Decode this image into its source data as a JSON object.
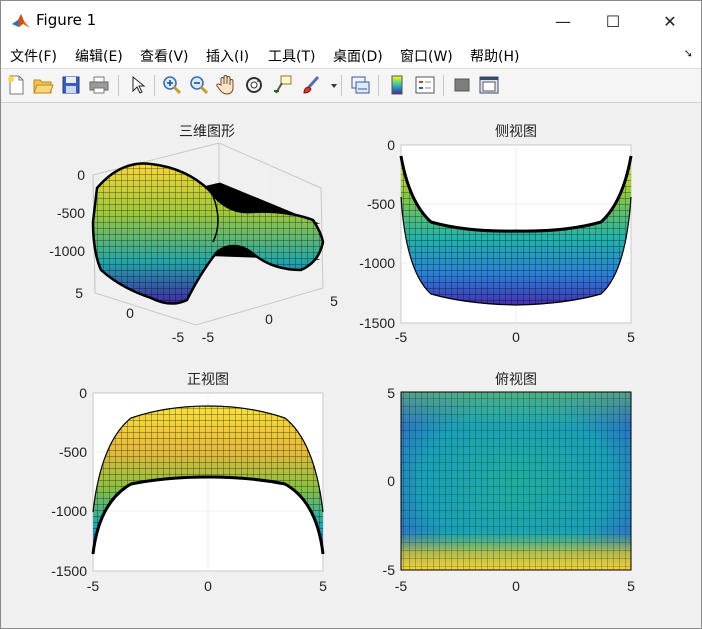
{
  "window": {
    "title": "Figure 1",
    "controls": {
      "minimize": "—",
      "maximize": "☐",
      "close": "✕"
    }
  },
  "menu": {
    "items": [
      "文件(F)",
      "编辑(E)",
      "查看(V)",
      "插入(I)",
      "工具(T)",
      "桌面(D)",
      "窗口(W)",
      "帮助(H)"
    ],
    "overflow_arrow": "➘"
  },
  "toolbar": {
    "icons": [
      "new-figure-icon",
      "open-file-icon",
      "save-icon",
      "print-icon",
      "pointer-icon",
      "zoom-in-icon",
      "zoom-out-icon",
      "pan-hand-icon",
      "rotate-3d-icon",
      "data-cursor-icon",
      "brush-icon",
      "brush-dropdown-icon",
      "link-plot-icon",
      "colorbar-icon",
      "legend-icon",
      "hide-plot-tools-icon",
      "show-plot-tools-icon"
    ]
  },
  "colors": {
    "window_bg": "#f0f0f0",
    "axes_bg": "#ffffff",
    "grid": "#e3e3e3",
    "mesh_edge": "#000000",
    "colormap": "parula"
  },
  "chart_data": [
    {
      "type": "surface",
      "view": "3d",
      "title": "三维图形",
      "x_ticks": [
        "-5",
        "0",
        "5"
      ],
      "y_ticks": [
        "-5",
        "0",
        "5"
      ],
      "z_ticks": [
        "0",
        "-500",
        "-1000"
      ],
      "xlim": [
        -5,
        5
      ],
      "ylim": [
        -5,
        5
      ],
      "zlim": [
        -1400,
        0
      ],
      "colormap": "parula",
      "grid": true
    },
    {
      "type": "surface",
      "view": "side",
      "title": "侧视图",
      "x_ticks": [
        "-5",
        "0",
        "5"
      ],
      "y_ticks": [
        "0",
        "-500",
        "-1000",
        "-1500"
      ],
      "xlim": [
        -5,
        5
      ],
      "ylim": [
        -1500,
        0
      ],
      "colormap": "parula",
      "grid": true
    },
    {
      "type": "surface",
      "view": "front",
      "title": "正视图",
      "x_ticks": [
        "-5",
        "0",
        "5"
      ],
      "y_ticks": [
        "0",
        "-500",
        "-1000",
        "-1500"
      ],
      "xlim": [
        -5,
        5
      ],
      "ylim": [
        -1500,
        0
      ],
      "colormap": "parula",
      "grid": true
    },
    {
      "type": "heatmap",
      "view": "top",
      "title": "俯视图",
      "x_ticks": [
        "-5",
        "0",
        "5"
      ],
      "y_ticks": [
        "5",
        "0",
        "-5"
      ],
      "xlim": [
        -5,
        5
      ],
      "ylim": [
        -5,
        5
      ],
      "colormap": "parula",
      "grid": true
    }
  ]
}
